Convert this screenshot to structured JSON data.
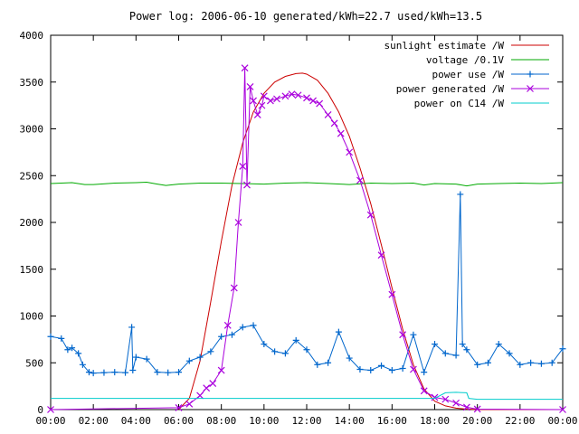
{
  "chart_data": {
    "type": "line",
    "title": "Power log: 2006-06-10 generated/kWh=22.7 used/kWh=13.5",
    "xlabel": "",
    "ylabel": "",
    "xlim": [
      0,
      24
    ],
    "ylim": [
      0,
      4000
    ],
    "x_tick_labels": [
      "00:00",
      "02:00",
      "04:00",
      "06:00",
      "08:00",
      "10:00",
      "12:00",
      "14:00",
      "16:00",
      "18:00",
      "20:00",
      "22:00",
      "00:00"
    ],
    "y_ticks": [
      0,
      500,
      1000,
      1500,
      2000,
      2500,
      3000,
      3500,
      4000
    ],
    "grid": false,
    "legend_position": "top-right",
    "series": [
      {
        "name": "sunlight estimate /W",
        "color": "#cc0000",
        "marker": "none",
        "x": [
          6.0,
          6.5,
          7.0,
          7.5,
          8.0,
          8.5,
          9.0,
          9.5,
          10.0,
          10.5,
          11.0,
          11.5,
          11.8,
          12.0,
          12.5,
          13.0,
          13.5,
          14.0,
          14.5,
          15.0,
          15.5,
          16.0,
          16.5,
          17.0,
          17.5,
          18.0,
          18.5,
          19.0,
          19.5,
          20.0,
          24.0
        ],
        "values": [
          0,
          120,
          520,
          1150,
          1800,
          2400,
          2850,
          3180,
          3380,
          3500,
          3560,
          3590,
          3595,
          3585,
          3520,
          3380,
          3180,
          2920,
          2580,
          2200,
          1760,
          1300,
          860,
          480,
          220,
          90,
          40,
          15,
          5,
          0,
          0
        ]
      },
      {
        "name": "voltage /0.1V",
        "color": "#00aa00",
        "marker": "none",
        "x": [
          0,
          1,
          1.6,
          2.0,
          3,
          4,
          4.5,
          5,
          5.4,
          6,
          7,
          8,
          9,
          10,
          11,
          12,
          13,
          14,
          15,
          16,
          17,
          17.5,
          18,
          19,
          19.5,
          20,
          21,
          22,
          23,
          24
        ],
        "values": [
          2415,
          2425,
          2405,
          2405,
          2420,
          2425,
          2430,
          2410,
          2395,
          2410,
          2420,
          2420,
          2415,
          2410,
          2420,
          2425,
          2415,
          2405,
          2420,
          2415,
          2420,
          2400,
          2415,
          2410,
          2390,
          2410,
          2415,
          2420,
          2415,
          2425
        ]
      },
      {
        "name": "power use /W",
        "color": "#0066cc",
        "marker": "plus",
        "x": [
          0,
          0.5,
          0.8,
          1.0,
          1.3,
          1.5,
          1.8,
          2.0,
          2.5,
          3.0,
          3.5,
          3.8,
          3.85,
          4.0,
          4.5,
          5.0,
          5.5,
          6.0,
          6.5,
          7.0,
          7.5,
          8.0,
          8.5,
          9.0,
          9.5,
          10.0,
          10.5,
          11.0,
          11.5,
          12.0,
          12.5,
          13.0,
          13.5,
          14.0,
          14.5,
          15.0,
          15.5,
          16.0,
          16.5,
          17.0,
          17.5,
          18.0,
          18.5,
          19.0,
          19.2,
          19.3,
          19.5,
          20.0,
          20.5,
          21.0,
          21.5,
          22.0,
          22.5,
          23.0,
          23.5,
          24.0
        ],
        "values": [
          780,
          760,
          640,
          660,
          600,
          480,
          400,
          390,
          395,
          400,
          395,
          880,
          420,
          560,
          540,
          400,
          395,
          400,
          520,
          560,
          620,
          780,
          800,
          880,
          900,
          700,
          620,
          600,
          740,
          640,
          480,
          500,
          830,
          550,
          430,
          420,
          470,
          420,
          440,
          800,
          400,
          700,
          600,
          580,
          2300,
          700,
          640,
          480,
          500,
          700,
          600,
          480,
          500,
          490,
          500,
          650
        ]
      },
      {
        "name": "power generated /W",
        "color": "#aa00dd",
        "marker": "cross",
        "x": [
          0,
          6.0,
          6.5,
          7.0,
          7.3,
          7.6,
          8.0,
          8.3,
          8.6,
          8.8,
          9.0,
          9.1,
          9.2,
          9.35,
          9.5,
          9.7,
          9.9,
          10.0,
          10.3,
          10.6,
          11.0,
          11.3,
          11.6,
          12.0,
          12.3,
          12.6,
          13.0,
          13.3,
          13.6,
          14.0,
          14.5,
          15.0,
          15.5,
          16.0,
          16.5,
          17.0,
          17.5,
          18.0,
          18.5,
          19.0,
          19.5,
          20.0,
          24.0
        ],
        "values": [
          0,
          20,
          60,
          150,
          230,
          280,
          420,
          900,
          1300,
          2000,
          2600,
          3650,
          2400,
          3450,
          3300,
          3150,
          3250,
          3350,
          3300,
          3320,
          3350,
          3370,
          3360,
          3330,
          3300,
          3270,
          3150,
          3060,
          2950,
          2750,
          2450,
          2080,
          1650,
          1230,
          800,
          430,
          200,
          130,
          110,
          70,
          25,
          5,
          0
        ]
      },
      {
        "name": "power on C14 /W",
        "color": "#00cccc",
        "marker": "none",
        "x": [
          0,
          18.0,
          18.5,
          19.0,
          19.5,
          19.6,
          20.0,
          24.0
        ],
        "values": [
          120,
          120,
          180,
          185,
          180,
          120,
          110,
          110
        ]
      }
    ]
  }
}
